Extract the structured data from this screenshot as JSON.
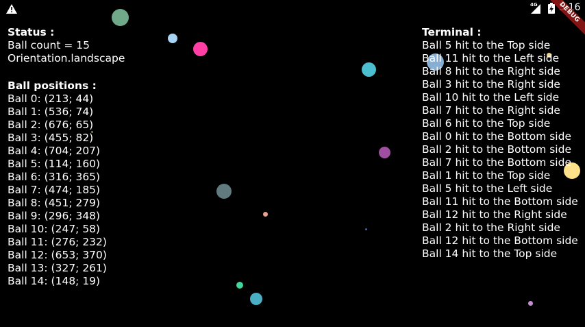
{
  "status_bar": {
    "warning_icon": "warning-triangle-icon",
    "network_label": "4G",
    "signal_icon": "cell-signal-icon",
    "battery_icon": "battery-charging-icon",
    "time": "5:16",
    "debug_label": "DEBUG"
  },
  "status": {
    "heading": "Status :",
    "ball_count": "Ball count = 15",
    "orientation": "Orientation.landscape"
  },
  "positions": {
    "heading": "Ball positions :",
    "items": [
      "Ball 0: (213; 44)",
      "Ball 1: (536; 74)",
      "Ball 2: (676; 65)",
      "Ball 3: (455; 82)",
      "Ball 4: (704; 207)",
      "Ball 5: (114; 160)",
      "Ball 6: (316; 365)",
      "Ball 7: (474; 185)",
      "Ball 8: (451; 279)",
      "Ball 9: (296; 348)",
      "Ball 10: (247; 58)",
      "Ball 11: (276; 232)",
      "Ball 12: (653; 370)",
      "Ball 13: (327; 261)",
      "Ball 14: (148; 19)"
    ]
  },
  "terminal": {
    "heading": "Terminal :",
    "lines": [
      "Ball 5 hit to the Top side",
      "Ball 11 hit to the Left side",
      "Ball 8 hit to the Right side",
      "Ball 3 hit to the Right side",
      "Ball 10 hit to the Left side",
      "Ball 7 hit to the Right side",
      "Ball 6 hit to the Top side",
      "Ball 0 hit to the Bottom side",
      "Ball 2 hit to the Bottom side",
      "Ball 7 hit to the Bottom side",
      "Ball 1 hit to the Top side",
      "Ball 5 hit to the Left side",
      "Ball 11 hit to the Bottom side",
      "Ball 12 hit to the Right side",
      "Ball 2 hit to the Right side",
      "Ball 12 hit to the Bottom side",
      "Ball 14 hit to the Top side"
    ]
  },
  "balls": [
    {
      "color": "#6fa98a"
    },
    {
      "color": "#a8d4f4"
    },
    {
      "color": "#ff3fa4"
    },
    {
      "color": "#4bbfd0"
    },
    {
      "color": "#a04fa0"
    },
    {
      "color": "#607a80"
    },
    {
      "color": "#e8a090"
    },
    {
      "color": "#3ed69a"
    },
    {
      "color": "#4aaec4"
    },
    {
      "color": "#c090d0"
    },
    {
      "color": "#a0cdf8"
    },
    {
      "color": "#f2d07a"
    },
    {
      "color": "#ffe08a"
    },
    {
      "color": "#4060d0"
    },
    {
      "color": "#6a8a40"
    }
  ]
}
